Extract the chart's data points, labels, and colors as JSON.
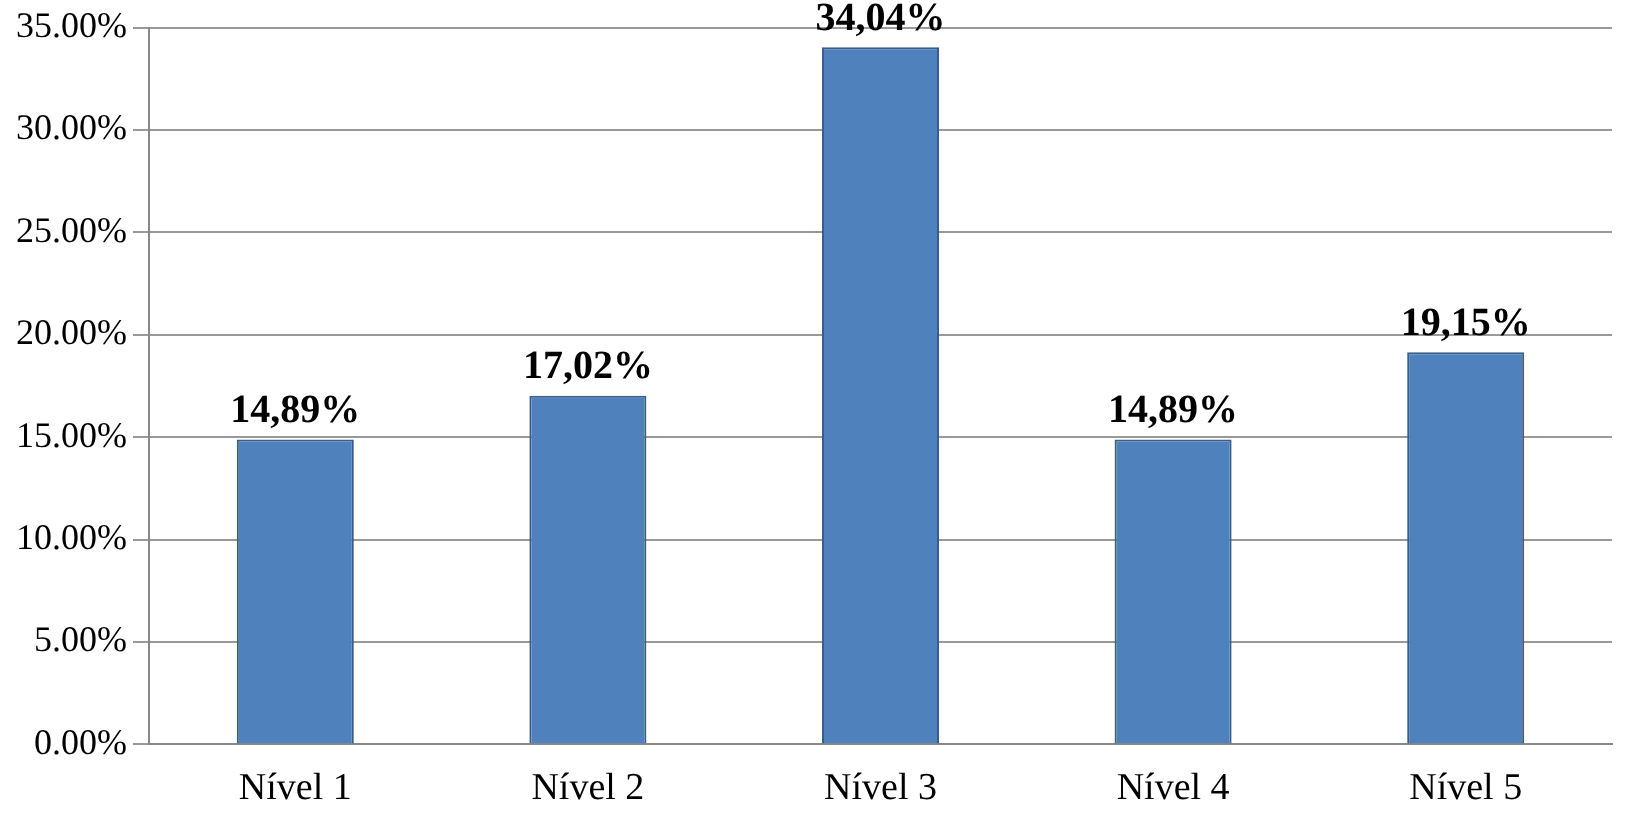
{
  "chart_data": {
    "type": "bar",
    "categories": [
      "Nível 1",
      "Nível 2",
      "Nível 3",
      "Nível 4",
      "Nível 5"
    ],
    "values": [
      14.89,
      17.02,
      34.04,
      14.89,
      19.15
    ],
    "value_labels": [
      "14,89%",
      "17,02%",
      "34,04%",
      "14,89%",
      "19,15%"
    ],
    "color": "#4f81bd",
    "ylim": [
      0,
      35
    ],
    "yticks": [
      {
        "value": 0,
        "label": "0.00%"
      },
      {
        "value": 5,
        "label": "5.00%"
      },
      {
        "value": 10,
        "label": "10.00%"
      },
      {
        "value": 15,
        "label": "15.00%"
      },
      {
        "value": 20,
        "label": "20.00%"
      },
      {
        "value": 25,
        "label": "25.00%"
      },
      {
        "value": 30,
        "label": "30.00%"
      },
      {
        "value": 35,
        "label": "35.00%"
      }
    ],
    "grid": "y",
    "legend": false
  }
}
